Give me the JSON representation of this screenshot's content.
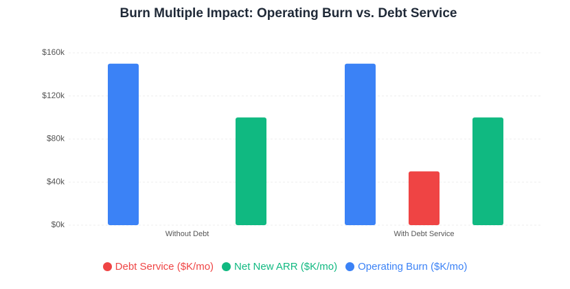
{
  "chart_data": {
    "type": "bar",
    "title": "Burn Multiple Impact: Operating Burn vs. Debt Service",
    "categories": [
      "Without Debt",
      "With Debt Service"
    ],
    "series": [
      {
        "name": "Operating Burn ($K/mo)",
        "color": "#3b82f6",
        "values": [
          150,
          150
        ]
      },
      {
        "name": "Debt Service ($K/mo)",
        "color": "#ef4444",
        "values": [
          0,
          50
        ]
      },
      {
        "name": "Net New ARR ($K/mo)",
        "color": "#10b981",
        "values": [
          100,
          100
        ]
      }
    ],
    "ylim": [
      0,
      160
    ],
    "yticks": [
      {
        "value": 0,
        "label": "$0k"
      },
      {
        "value": 40,
        "label": "$40k"
      },
      {
        "value": 80,
        "label": "$80k"
      },
      {
        "value": 120,
        "label": "$120k"
      },
      {
        "value": 160,
        "label": "$160k"
      }
    ],
    "grid": true,
    "legend": "bottom"
  }
}
